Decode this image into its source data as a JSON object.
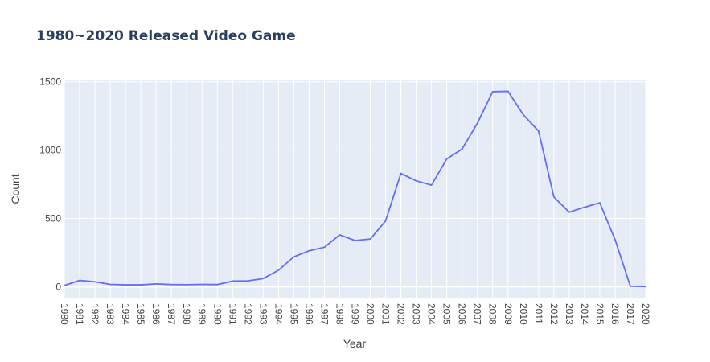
{
  "chart_data": {
    "type": "line",
    "title": "1980~2020 Released Video Game",
    "xlabel": "Year",
    "ylabel": "Count",
    "x": [
      "1980",
      "1981",
      "1982",
      "1983",
      "1984",
      "1985",
      "1986",
      "1987",
      "1988",
      "1989",
      "1990",
      "1991",
      "1992",
      "1993",
      "1994",
      "1995",
      "1996",
      "1997",
      "1998",
      "1999",
      "2000",
      "2001",
      "2002",
      "2003",
      "2004",
      "2005",
      "2006",
      "2007",
      "2008",
      "2009",
      "2010",
      "2011",
      "2012",
      "2013",
      "2014",
      "2015",
      "2016",
      "2017",
      "2020"
    ],
    "series": [
      {
        "values": [
          9,
          46,
          36,
          17,
          14,
          14,
          21,
          16,
          15,
          17,
          16,
          41,
          43,
          60,
          121,
          219,
          263,
          289,
          379,
          338,
          349,
          482,
          829,
          775,
          744,
          936,
          1008,
          1197,
          1428,
          1431,
          1259,
          1139,
          657,
          546,
          582,
          614,
          344,
          3,
          1
        ]
      }
    ],
    "yticks": [
      "0",
      "500",
      "1000",
      "1500"
    ],
    "ylim": [
      -80,
      1510
    ],
    "grid": true,
    "legend": "none",
    "line_color": "#636efa",
    "plot_bg": "#e5ecf6"
  }
}
